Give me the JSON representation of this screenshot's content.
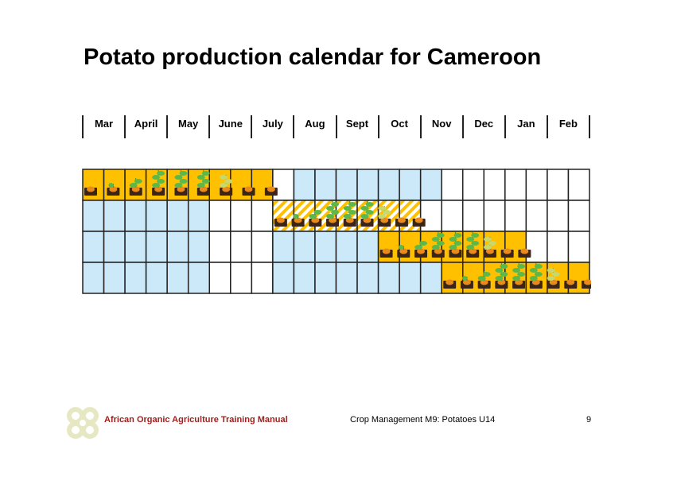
{
  "title": "Potato production calendar for Cameroon",
  "months": [
    "Mar",
    "April",
    "May",
    "June",
    "July",
    "Aug",
    "Sept",
    "Oct",
    "Nov",
    "Dec",
    "Jan",
    "Feb"
  ],
  "colors": {
    "planting_season": "#ffc000",
    "off_season": "#cce9fa",
    "empty": "#ffffff",
    "hatch": "#ffc000"
  },
  "rows": [
    {
      "cells": "ooooooooowbbbbbbbwwwwwww",
      "crop_span": [
        0,
        8
      ]
    },
    {
      "cells": "bbbbbbwwwhhhhhhhwwwwwwww",
      "crop_span": [
        9,
        15
      ]
    },
    {
      "cells": "bbbbbbwwwbbbbbooooooowww",
      "crop_span": [
        14,
        20
      ]
    },
    {
      "cells": "bbbbbbwwwbbbbbbbbooooooo",
      "crop_span": [
        17,
        23
      ]
    }
  ],
  "growth_stages": [
    "seed-tuber",
    "sprout",
    "young-plant",
    "full-plant",
    "full-plant",
    "full-plant",
    "senescing-plant",
    "harvest-tuber",
    "harvest-tuber"
  ],
  "footer": {
    "manual": "African Organic Agriculture Training Manual",
    "module": "Crop Management M9: Potatoes U14",
    "page": "9"
  }
}
